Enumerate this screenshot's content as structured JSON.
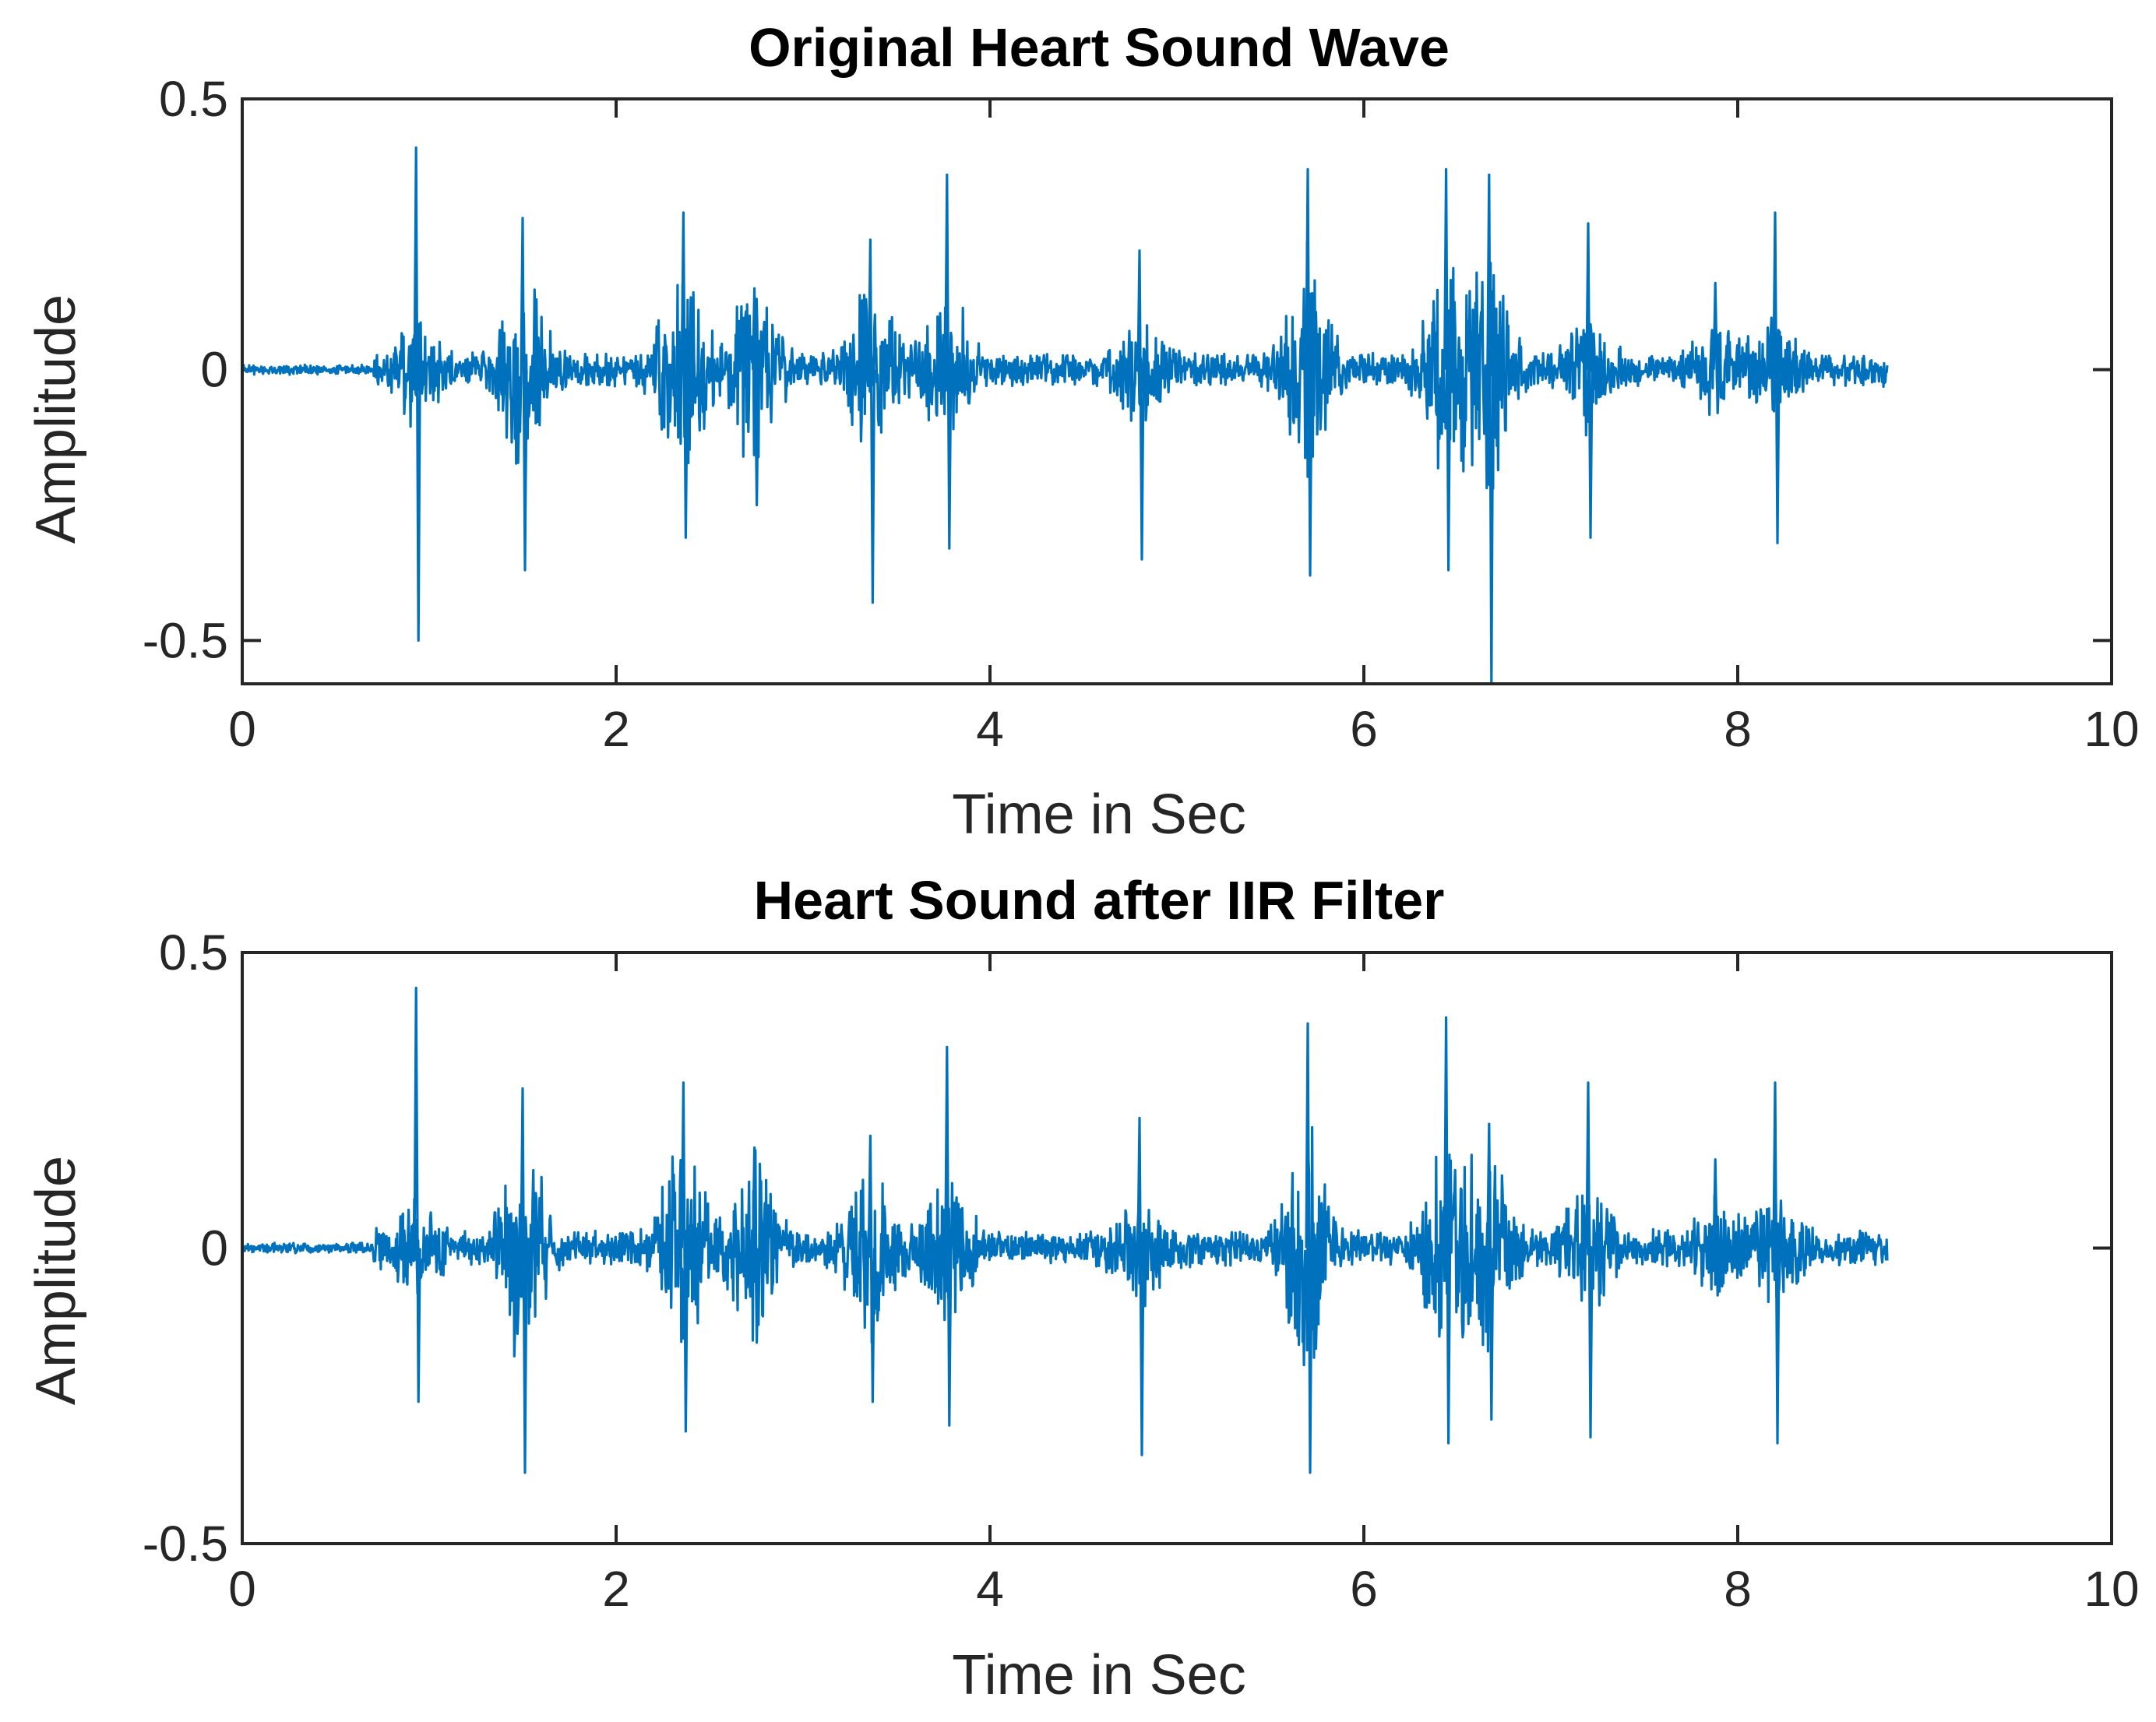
{
  "chart_data": [
    {
      "type": "line",
      "title": "Original Heart Sound Wave",
      "xlabel": "Time in Sec",
      "ylabel": "Amplitude",
      "xlim": [
        0,
        10
      ],
      "ylim": [
        -0.58,
        0.5
      ],
      "xticks": [
        0,
        2,
        4,
        6,
        8,
        10
      ],
      "xtick_labels": [
        "0",
        "2",
        "4",
        "6",
        "8",
        "10"
      ],
      "yticks": [
        0.5,
        0,
        -0.5
      ],
      "ytick_labels": [
        "0.5",
        "0",
        "-0.5"
      ],
      "grid": false,
      "line_color": "#0072BD",
      "signal_end_time": 8.8,
      "beats": [
        {
          "t": 0.93,
          "max": 0.41,
          "min": -0.5,
          "noise": 0.05
        },
        {
          "t": 1.5,
          "max": 0.28,
          "min": -0.37,
          "noise": 0.12
        },
        {
          "t": 2.36,
          "max": 0.29,
          "min": -0.31,
          "noise": 0.12
        },
        {
          "t": 2.74,
          "max": 0.15,
          "min": -0.25,
          "noise": 0.11
        },
        {
          "t": 3.36,
          "max": 0.24,
          "min": -0.43,
          "noise": 0.1
        },
        {
          "t": 3.77,
          "max": 0.36,
          "min": -0.33,
          "noise": 0.09
        },
        {
          "t": 4.8,
          "max": 0.22,
          "min": -0.35,
          "noise": 0.05
        },
        {
          "t": 5.7,
          "max": 0.37,
          "min": -0.38,
          "noise": 0.14
        },
        {
          "t": 6.44,
          "max": 0.37,
          "min": -0.37,
          "noise": 0.12
        },
        {
          "t": 6.67,
          "max": 0.36,
          "min": -0.58,
          "noise": 0.13
        },
        {
          "t": 7.2,
          "max": 0.27,
          "min": -0.31,
          "noise": 0.06
        },
        {
          "t": 7.88,
          "max": 0.16,
          "min": -0.08,
          "noise": 0.04
        },
        {
          "t": 8.2,
          "max": 0.29,
          "min": -0.32,
          "noise": 0.05
        }
      ]
    },
    {
      "type": "line",
      "title": "Heart Sound after IIR Filter",
      "xlabel": "Time in Sec",
      "ylabel": "Amplitude",
      "xlim": [
        0,
        10
      ],
      "ylim": [
        -0.5,
        0.5
      ],
      "xticks": [
        0,
        2,
        4,
        6,
        8,
        10
      ],
      "xtick_labels": [
        "0",
        "2",
        "4",
        "6",
        "8",
        "10"
      ],
      "yticks": [
        0.5,
        0,
        -0.5
      ],
      "ytick_labels": [
        "0.5",
        "0",
        "-0.5"
      ],
      "grid": false,
      "line_color": "#0072BD",
      "signal_end_time": 8.8,
      "beats": [
        {
          "t": 0.93,
          "max": 0.44,
          "min": -0.26,
          "noise": 0.05
        },
        {
          "t": 1.5,
          "max": 0.27,
          "min": -0.38,
          "noise": 0.11
        },
        {
          "t": 2.36,
          "max": 0.28,
          "min": -0.31,
          "noise": 0.11
        },
        {
          "t": 2.74,
          "max": 0.17,
          "min": -0.16,
          "noise": 0.1
        },
        {
          "t": 3.36,
          "max": 0.19,
          "min": -0.26,
          "noise": 0.09
        },
        {
          "t": 3.77,
          "max": 0.34,
          "min": -0.3,
          "noise": 0.08
        },
        {
          "t": 4.8,
          "max": 0.22,
          "min": -0.35,
          "noise": 0.05
        },
        {
          "t": 5.7,
          "max": 0.38,
          "min": -0.38,
          "noise": 0.12
        },
        {
          "t": 6.44,
          "max": 0.39,
          "min": -0.33,
          "noise": 0.11
        },
        {
          "t": 6.67,
          "max": 0.21,
          "min": -0.29,
          "noise": 0.1
        },
        {
          "t": 7.2,
          "max": 0.28,
          "min": -0.32,
          "noise": 0.06
        },
        {
          "t": 7.88,
          "max": 0.15,
          "min": -0.08,
          "noise": 0.04
        },
        {
          "t": 8.2,
          "max": 0.28,
          "min": -0.33,
          "noise": 0.05
        }
      ]
    }
  ]
}
